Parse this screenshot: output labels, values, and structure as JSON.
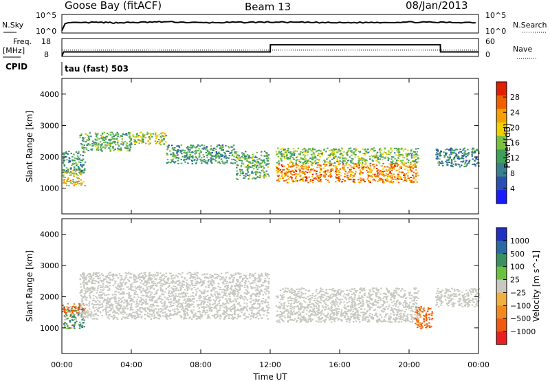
{
  "header": {
    "title": "Goose Bay (fitACF)",
    "beam": "Beam 13",
    "date": "08/Jan/2013"
  },
  "status_panels": {
    "nsky_label": "N.Sky",
    "nsearch_label": "N.Search",
    "noise_ticks": [
      "10^5",
      "10^0"
    ],
    "noise_ticks_right": [
      "10^5",
      "10^0"
    ],
    "freq_label_1": "Freq.",
    "freq_label_2": "[MHz]",
    "freq_ticks": [
      "18",
      "8"
    ],
    "nave_label": "Nave",
    "nave_ticks": [
      "60",
      "0"
    ],
    "cpid_label": "CPID",
    "cpid_value": "tau (fast) 503"
  },
  "x_axis": {
    "label": "Time UT",
    "ticks": [
      "00:00",
      "04:00",
      "08:00",
      "12:00",
      "16:00",
      "20:00",
      "00:00"
    ]
  },
  "colors": {
    "power_scale": [
      "#1a1aff",
      "#2a4fb0",
      "#3a7f8f",
      "#3fa05a",
      "#7ac040",
      "#f0d000",
      "#f5a000",
      "#f06000",
      "#e02000"
    ],
    "velocity_scale": [
      "#e82020",
      "#f05a10",
      "#f08a20",
      "#f0b040",
      "#c8c8c0",
      "#6cc040",
      "#3a9060",
      "#2a6aa0",
      "#2030c0"
    ]
  },
  "chart_data": [
    {
      "type": "line",
      "panel": "noise",
      "series": [
        {
          "name": "N.Sky",
          "x": [
            0,
            0.2,
            2,
            3,
            4.4,
            6,
            8,
            10,
            12,
            14,
            16,
            18,
            20,
            22,
            24
          ],
          "y": [
            0.5,
            2.8,
            3.0,
            2.9,
            3.0,
            3.2,
            2.9,
            3.0,
            3.1,
            3.0,
            2.9,
            3.0,
            3.1,
            3.0,
            3.0
          ]
        },
        {
          "name": "N.Search",
          "x": [
            0,
            24
          ],
          "y": [
            0.5,
            0.5
          ]
        }
      ],
      "xlim": [
        0,
        24
      ],
      "ylim": [
        0,
        5
      ]
    },
    {
      "type": "line",
      "panel": "frequency",
      "series": [
        {
          "name": "Freq.",
          "x": [
            0,
            0.1,
            12,
            12.01,
            21.8,
            21.81,
            24
          ],
          "y": [
            8,
            10.5,
            10.5,
            14.5,
            14.5,
            10.5,
            10.5
          ]
        },
        {
          "name": "Nave",
          "x": [
            0,
            24
          ],
          "y": [
            11.5,
            11.5
          ]
        }
      ],
      "xlim": [
        0,
        24
      ],
      "ylim": [
        8,
        18
      ]
    },
    {
      "type": "heatmap",
      "panel": "power",
      "xlabel": "",
      "ylabel": "Slant Range [km]",
      "xlim": [
        0,
        24
      ],
      "ylim": [
        180,
        4500
      ],
      "yticks": [
        1000,
        2000,
        3000,
        4000
      ],
      "colorbar_label": "Power [dB]",
      "colorbar_ticks": [
        "28",
        "24",
        "20",
        "16",
        "12",
        "8",
        "4"
      ],
      "regions": [
        {
          "x": [
            0,
            1.3
          ],
          "y": [
            1100,
            1600
          ],
          "value": 20
        },
        {
          "x": [
            0,
            1.3
          ],
          "y": [
            1500,
            2200
          ],
          "value": 10
        },
        {
          "x": [
            1,
            4
          ],
          "y": [
            2200,
            2800
          ],
          "value": 12
        },
        {
          "x": [
            4,
            6
          ],
          "y": [
            2400,
            2800
          ],
          "value": 16
        },
        {
          "x": [
            6,
            10
          ],
          "y": [
            1800,
            2400
          ],
          "value": 10
        },
        {
          "x": [
            10,
            11.9
          ],
          "y": [
            1300,
            2200
          ],
          "value": 12
        },
        {
          "x": [
            12.3,
            20.5
          ],
          "y": [
            1200,
            1800
          ],
          "value": 24
        },
        {
          "x": [
            12.3,
            20.5
          ],
          "y": [
            1800,
            2300
          ],
          "value": 14
        },
        {
          "x": [
            21.5,
            24
          ],
          "y": [
            1700,
            2300
          ],
          "value": 8
        }
      ]
    },
    {
      "type": "heatmap",
      "panel": "velocity",
      "xlabel": "Time UT",
      "ylabel": "Slant Range [km]",
      "xlim": [
        0,
        24
      ],
      "ylim": [
        180,
        4500
      ],
      "yticks": [
        1000,
        2000,
        3000,
        4000
      ],
      "colorbar_label": "Velocity [m s^-1]",
      "colorbar_ticks": [
        "1000",
        "500",
        "100",
        "25",
        "−25",
        "−100",
        "−500",
        "−1000"
      ],
      "regions": [
        {
          "x": [
            0,
            1.3
          ],
          "y": [
            1000,
            1700
          ],
          "value": 100
        },
        {
          "x": [
            0,
            1.3
          ],
          "y": [
            1500,
            1800
          ],
          "value": -300
        },
        {
          "x": [
            1,
            11.9
          ],
          "y": [
            1300,
            2800
          ],
          "value": 0
        },
        {
          "x": [
            12.3,
            20.5
          ],
          "y": [
            1200,
            2300
          ],
          "value": 0
        },
        {
          "x": [
            20.3,
            21.3
          ],
          "y": [
            1000,
            1700
          ],
          "value": -300
        },
        {
          "x": [
            21.5,
            24
          ],
          "y": [
            1700,
            2300
          ],
          "value": 0
        }
      ]
    }
  ]
}
